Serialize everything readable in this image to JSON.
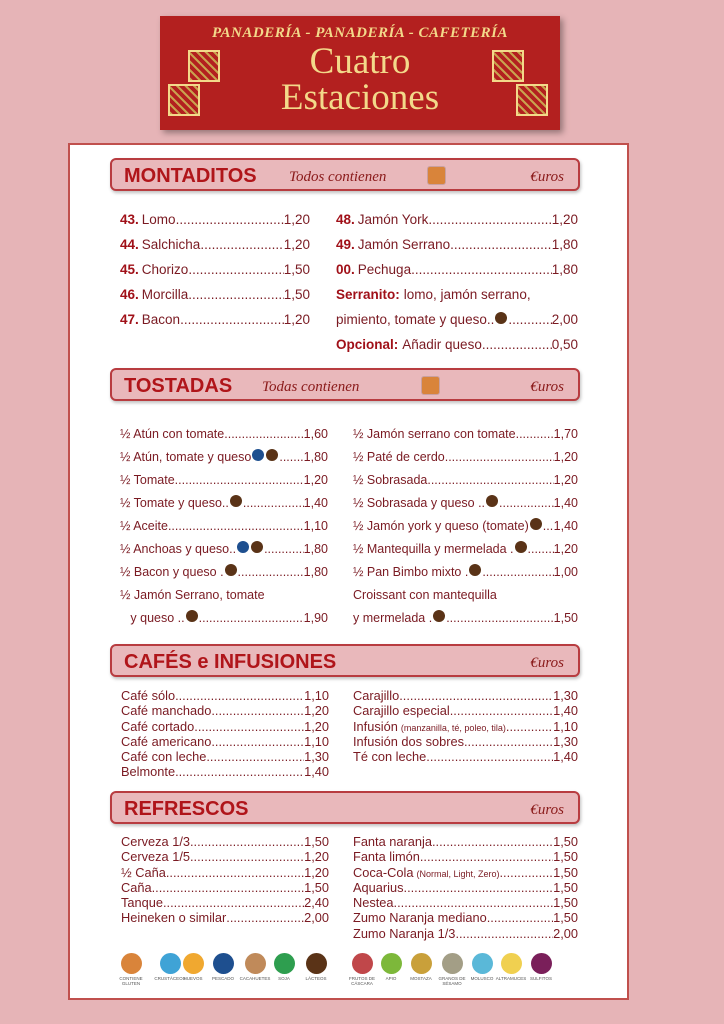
{
  "logo": {
    "tagline": "PANADERÍA - PANADERÍA - CAFETERÍA",
    "name_line1": "Cuatro",
    "name_line2": "Estaciones"
  },
  "icons": {
    "gluten": "#d9843a",
    "lactose": "#5a3317",
    "fish": "#1e4f8f"
  },
  "montaditos": {
    "title": "MONTADITOS",
    "subtitle": "Todos contienen",
    "subtitle_icon": "gluten-icon",
    "currency": "€uros",
    "left": [
      {
        "num": "43.",
        "name": "Lomo",
        "price": "1,20"
      },
      {
        "num": "44.",
        "name": "Salchicha",
        "price": "1,20"
      },
      {
        "num": "45.",
        "name": "Chorizo",
        "price": "1,50"
      },
      {
        "num": "46.",
        "name": "Morcilla",
        "price": "1,50"
      },
      {
        "num": "47.",
        "name": "Bacon",
        "price": "1,20"
      }
    ],
    "right": [
      {
        "num": "48.",
        "name": "Jamón York",
        "price": "1,20"
      },
      {
        "num": "49.",
        "name": "Jamón Serrano",
        "price": "1,80"
      },
      {
        "num": "00.",
        "name": "Pechuga",
        "price": "1,80"
      },
      {
        "label": "Serranito:",
        "name": "lomo, jamón serrano,",
        "nodots": true
      },
      {
        "name": "pimiento, tomate y queso..",
        "icons": [
          "lact"
        ],
        "price": "2,00"
      },
      {
        "label": "Opcional:",
        "name": "Añadir queso",
        "price": "0,50"
      }
    ]
  },
  "tostadas": {
    "title": "TOSTADAS",
    "subtitle": "Todas contienen",
    "subtitle_icon": "gluten-icon",
    "currency": "€uros",
    "left": [
      {
        "name": "½ Atún con tomate",
        "price": "1,60"
      },
      {
        "name": "½ Atún, tomate y queso",
        "icons": [
          "fish",
          "lact"
        ],
        "price": "1,80"
      },
      {
        "name": "½ Tomate",
        "price": "1,20"
      },
      {
        "name": "½ Tomate y queso..",
        "icons": [
          "lact"
        ],
        "price": "1,40"
      },
      {
        "name": "½ Aceite",
        "price": "1,10"
      },
      {
        "name": "½ Anchoas y queso..",
        "icons": [
          "fish",
          "lact"
        ],
        "price": "1,80"
      },
      {
        "name": "½ Bacon y queso .",
        "icons": [
          "lact"
        ],
        "price": "1,80"
      },
      {
        "name": "½ Jamón Serrano, tomate",
        "nodots": true
      },
      {
        "name": "   y queso ..",
        "icons": [
          "lact"
        ],
        "price": "1,90"
      }
    ],
    "right": [
      {
        "name": "½ Jamón serrano con tomate",
        "price": "1,70"
      },
      {
        "name": "½ Paté de cerdo",
        "price": "1,20"
      },
      {
        "name": "½ Sobrasada",
        "price": "1,20"
      },
      {
        "name": "½ Sobrasada y queso ..",
        "icons": [
          "lact"
        ],
        "price": "1,40"
      },
      {
        "name": "½ Jamón york y queso (tomate)",
        "icons": [
          "lact"
        ],
        "price": "1,40"
      },
      {
        "name": "½ Mantequilla y mermelada .",
        "icons": [
          "lact"
        ],
        "price": "1,20"
      },
      {
        "name": "½ Pan Bimbo mixto .",
        "icons": [
          "lact"
        ],
        "price": "1,00"
      },
      {
        "name": "Croissant con mantequilla",
        "nodots": true
      },
      {
        "name": "y mermelada .",
        "icons": [
          "lact"
        ],
        "price": "1,50"
      }
    ]
  },
  "cafes": {
    "title": "CAFÉS e INFUSIONES",
    "currency": "€uros",
    "left": [
      {
        "name": "Café sólo",
        "price": "1,10"
      },
      {
        "name": "Café manchado",
        "price": "1,20"
      },
      {
        "name": "Café cortado",
        "price": "1,20"
      },
      {
        "name": "Café americano",
        "price": "1,10"
      },
      {
        "name": "Café con leche",
        "price": "1,30"
      },
      {
        "name": "Belmonte",
        "price": "1,40"
      }
    ],
    "right": [
      {
        "name": "Carajillo",
        "price": "1,30"
      },
      {
        "name": "Carajillo especial",
        "price": "1,40"
      },
      {
        "name": "Infusión",
        "note": "(manzanilla, té, poleo, tila)",
        "price": "1,10"
      },
      {
        "name": "Infusión dos sobres",
        "price": "1,30"
      },
      {
        "name": "Té con leche",
        "price": "1,40"
      }
    ]
  },
  "refrescos": {
    "title": "REFRESCOS",
    "currency": "€uros",
    "left": [
      {
        "name": "Cerveza 1/3",
        "price": "1,50"
      },
      {
        "name": "Cerveza 1/5",
        "price": "1,20"
      },
      {
        "name": "½ Caña",
        "price": "1,20"
      },
      {
        "name": "Caña",
        "price": "1,50"
      },
      {
        "name": "Tanque",
        "price": "2,40"
      },
      {
        "name": "Heineken o similar",
        "price": "2,00"
      }
    ],
    "right": [
      {
        "name": "Fanta naranja",
        "price": "1,50"
      },
      {
        "name": "Fanta limón",
        "price": "1,50"
      },
      {
        "name": "Coca-Cola",
        "note": "(Normal, Light, Zero)",
        "price": "1,50"
      },
      {
        "name": "Aquarius",
        "price": "1,50"
      },
      {
        "name": "Nestea",
        "price": "1,50"
      },
      {
        "name": "Zumo Naranja mediano",
        "price": "1,50"
      },
      {
        "name": "Zumo Naranja 1/3",
        "price": "2,00"
      }
    ]
  },
  "allergens": [
    {
      "label": "CONTIENE GLUTEN",
      "color": "#d9843a"
    },
    {
      "label": "CRUSTÁCEOS",
      "color": "#3fa3d6"
    },
    {
      "label": "HUEVOS",
      "color": "#f0a830"
    },
    {
      "label": "PESCADO",
      "color": "#1e4f8f"
    },
    {
      "label": "CACAHUETES",
      "color": "#c08a5a"
    },
    {
      "label": "SOJA",
      "color": "#2e9e4f"
    },
    {
      "label": "LÁCTEOS",
      "color": "#5a3317"
    },
    {
      "label": "FRUTOS DE CÁSCARA",
      "color": "#c0474a"
    },
    {
      "label": "APIO",
      "color": "#7db83a"
    },
    {
      "label": "MOSTAZA",
      "color": "#c9a03a"
    },
    {
      "label": "GRANOS DE SÉSAMO",
      "color": "#a39e86"
    },
    {
      "label": "MOLUSCO",
      "color": "#5ab8d8"
    },
    {
      "label": "ALTRAMUCES",
      "color": "#f0d050"
    },
    {
      "label": "SULFITOS",
      "color": "#7a1f5a"
    }
  ]
}
